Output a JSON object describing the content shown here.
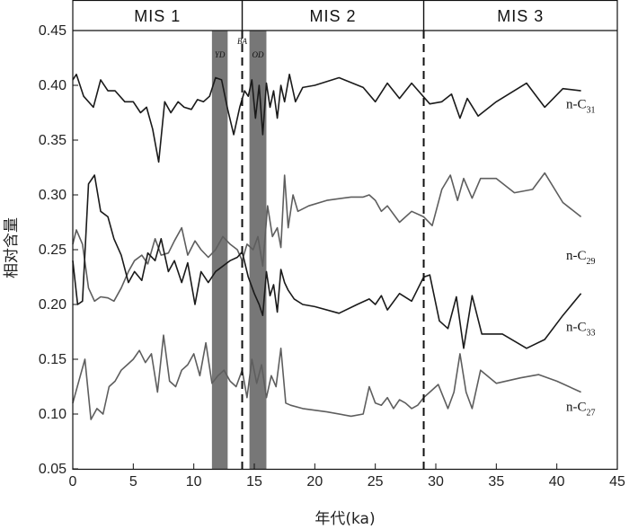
{
  "chart_data": {
    "type": "line",
    "xlabel": "年代(ka)",
    "ylabel": "相对含量",
    "xlim": [
      0,
      45
    ],
    "ylim": [
      0.05,
      0.45
    ],
    "xticks": [
      0,
      5,
      10,
      15,
      20,
      25,
      30,
      35,
      40,
      45
    ],
    "yticks": [
      "0.05",
      "0.10",
      "0.15",
      "0.20",
      "0.25",
      "0.30",
      "0.35",
      "0.40",
      "0.45"
    ],
    "stages": [
      {
        "label": "MIS 1",
        "from": 0,
        "to": 14
      },
      {
        "label": "MIS 2",
        "from": 14,
        "to": 29
      },
      {
        "label": "MIS 3",
        "from": 29,
        "to": 45
      }
    ],
    "stage_boundaries": [
      14,
      29
    ],
    "events": [
      {
        "label": "YD",
        "from": 11.5,
        "to": 12.8,
        "shaded": true
      },
      {
        "label": "BA",
        "at": 14,
        "shaded": false
      },
      {
        "label": "OD",
        "from": 14.6,
        "to": 16.0,
        "shaded": true
      }
    ],
    "series": [
      {
        "name": "n-C31",
        "label_main": "n-C",
        "label_sub": "31",
        "color": "#1a1a1a",
        "x": [
          0,
          0.3,
          0.9,
          1.7,
          2.3,
          2.9,
          3.5,
          4.3,
          5.0,
          5.6,
          6.1,
          6.6,
          7.1,
          7.6,
          8.1,
          8.7,
          9.2,
          9.8,
          10.3,
          10.8,
          11.3,
          11.8,
          12.3,
          12.8,
          13.3,
          13.8,
          14.2,
          14.5,
          14.8,
          15.1,
          15.4,
          15.7,
          16.0,
          16.3,
          16.6,
          16.9,
          17.2,
          17.5,
          17.9,
          18.4,
          19.0,
          20.0,
          22.0,
          24.0,
          25.0,
          26.0,
          27.0,
          28.0,
          29.5,
          30.5,
          31.3,
          32.0,
          32.6,
          33.5,
          35.0,
          37.5,
          39.0,
          40.5,
          42.0
        ],
        "y": [
          0.405,
          0.41,
          0.39,
          0.38,
          0.405,
          0.395,
          0.395,
          0.385,
          0.385,
          0.375,
          0.38,
          0.36,
          0.33,
          0.385,
          0.375,
          0.385,
          0.38,
          0.378,
          0.387,
          0.385,
          0.39,
          0.407,
          0.405,
          0.378,
          0.355,
          0.38,
          0.395,
          0.39,
          0.405,
          0.37,
          0.4,
          0.355,
          0.402,
          0.38,
          0.395,
          0.37,
          0.4,
          0.385,
          0.41,
          0.385,
          0.398,
          0.4,
          0.407,
          0.398,
          0.385,
          0.402,
          0.388,
          0.402,
          0.383,
          0.385,
          0.392,
          0.37,
          0.388,
          0.372,
          0.385,
          0.402,
          0.38,
          0.397,
          0.395
        ]
      },
      {
        "name": "n-C29",
        "label_main": "n-C",
        "label_sub": "29",
        "color": "#5e5e5e",
        "x": [
          0,
          0.3,
          0.8,
          1.3,
          1.8,
          2.3,
          2.9,
          3.4,
          4.0,
          4.6,
          5.1,
          5.7,
          6.2,
          6.8,
          7.3,
          7.9,
          8.4,
          9.0,
          9.5,
          10.1,
          10.6,
          11.2,
          11.8,
          12.4,
          13.0,
          13.6,
          14.0,
          14.4,
          14.9,
          15.3,
          15.7,
          16.1,
          16.5,
          16.9,
          17.2,
          17.5,
          17.8,
          18.2,
          18.6,
          19.5,
          21.0,
          23.0,
          24.0,
          24.5,
          25.0,
          25.5,
          26.0,
          27.0,
          28.0,
          29.0,
          29.7,
          30.5,
          31.2,
          31.8,
          32.3,
          33.0,
          33.7,
          35.0,
          36.5,
          38.0,
          39.0,
          40.5,
          42.0
        ],
        "y": [
          0.255,
          0.268,
          0.255,
          0.215,
          0.203,
          0.207,
          0.206,
          0.203,
          0.215,
          0.23,
          0.24,
          0.245,
          0.237,
          0.26,
          0.245,
          0.247,
          0.258,
          0.27,
          0.245,
          0.258,
          0.25,
          0.243,
          0.25,
          0.262,
          0.255,
          0.25,
          0.24,
          0.255,
          0.25,
          0.262,
          0.235,
          0.29,
          0.262,
          0.27,
          0.252,
          0.318,
          0.27,
          0.3,
          0.285,
          0.29,
          0.295,
          0.298,
          0.298,
          0.3,
          0.295,
          0.285,
          0.29,
          0.275,
          0.285,
          0.28,
          0.272,
          0.305,
          0.318,
          0.295,
          0.315,
          0.297,
          0.315,
          0.315,
          0.302,
          0.305,
          0.32,
          0.293,
          0.28
        ]
      },
      {
        "name": "n-C33",
        "label_main": "n-C",
        "label_sub": "33",
        "color": "#1a1a1a",
        "x": [
          0,
          0.4,
          0.8,
          1.3,
          1.8,
          2.3,
          2.9,
          3.4,
          4.0,
          4.6,
          5.1,
          5.7,
          6.2,
          6.8,
          7.3,
          7.9,
          8.4,
          9.0,
          9.5,
          10.1,
          10.6,
          11.2,
          11.8,
          12.4,
          13.0,
          13.6,
          14.0,
          14.5,
          15.0,
          15.4,
          15.7,
          16.0,
          16.3,
          16.6,
          16.9,
          17.2,
          17.5,
          17.8,
          18.3,
          19.0,
          20.0,
          22.0,
          23.5,
          24.5,
          25.0,
          25.5,
          26.0,
          27.0,
          28.0,
          29.0,
          29.5,
          30.3,
          31.0,
          31.7,
          32.3,
          33.0,
          33.8,
          35.5,
          37.5,
          39.0,
          40.5,
          42.0
        ],
        "y": [
          0.24,
          0.2,
          0.203,
          0.31,
          0.318,
          0.285,
          0.28,
          0.26,
          0.245,
          0.22,
          0.23,
          0.222,
          0.247,
          0.24,
          0.26,
          0.23,
          0.24,
          0.22,
          0.238,
          0.2,
          0.23,
          0.22,
          0.23,
          0.235,
          0.24,
          0.243,
          0.248,
          0.225,
          0.21,
          0.2,
          0.19,
          0.23,
          0.208,
          0.218,
          0.193,
          0.232,
          0.22,
          0.213,
          0.205,
          0.2,
          0.198,
          0.192,
          0.2,
          0.205,
          0.2,
          0.208,
          0.195,
          0.21,
          0.203,
          0.225,
          0.227,
          0.185,
          0.178,
          0.207,
          0.16,
          0.208,
          0.173,
          0.173,
          0.16,
          0.168,
          0.19,
          0.21
        ]
      },
      {
        "name": "n-C27",
        "label_main": "n-C",
        "label_sub": "27",
        "color": "#5e5e5e",
        "x": [
          0,
          0.5,
          1.0,
          1.5,
          2.0,
          2.5,
          3.0,
          3.5,
          4.0,
          4.5,
          5.0,
          5.5,
          6.0,
          6.5,
          7.0,
          7.5,
          8.0,
          8.5,
          9.0,
          9.5,
          10.0,
          10.5,
          11.0,
          11.5,
          12.0,
          12.5,
          13.0,
          13.5,
          14.0,
          14.4,
          14.8,
          15.2,
          15.6,
          16.0,
          16.4,
          16.8,
          17.2,
          17.6,
          18.0,
          19.0,
          21.0,
          23.0,
          24.0,
          24.5,
          25.0,
          25.5,
          26.0,
          26.5,
          27.0,
          27.5,
          28.0,
          28.5,
          29.0,
          29.5,
          30.2,
          31.0,
          31.5,
          32.0,
          32.5,
          33.0,
          33.7,
          35.0,
          37.0,
          38.5,
          40.0,
          42.0
        ],
        "y": [
          0.11,
          0.13,
          0.15,
          0.095,
          0.105,
          0.1,
          0.125,
          0.13,
          0.14,
          0.145,
          0.15,
          0.158,
          0.147,
          0.155,
          0.12,
          0.172,
          0.13,
          0.125,
          0.14,
          0.145,
          0.155,
          0.135,
          0.165,
          0.128,
          0.135,
          0.14,
          0.13,
          0.125,
          0.14,
          0.115,
          0.15,
          0.128,
          0.145,
          0.115,
          0.135,
          0.125,
          0.16,
          0.11,
          0.108,
          0.105,
          0.102,
          0.098,
          0.1,
          0.125,
          0.11,
          0.108,
          0.115,
          0.105,
          0.113,
          0.11,
          0.105,
          0.108,
          0.115,
          0.12,
          0.127,
          0.105,
          0.12,
          0.155,
          0.12,
          0.105,
          0.14,
          0.128,
          0.133,
          0.136,
          0.13,
          0.12
        ]
      }
    ]
  }
}
